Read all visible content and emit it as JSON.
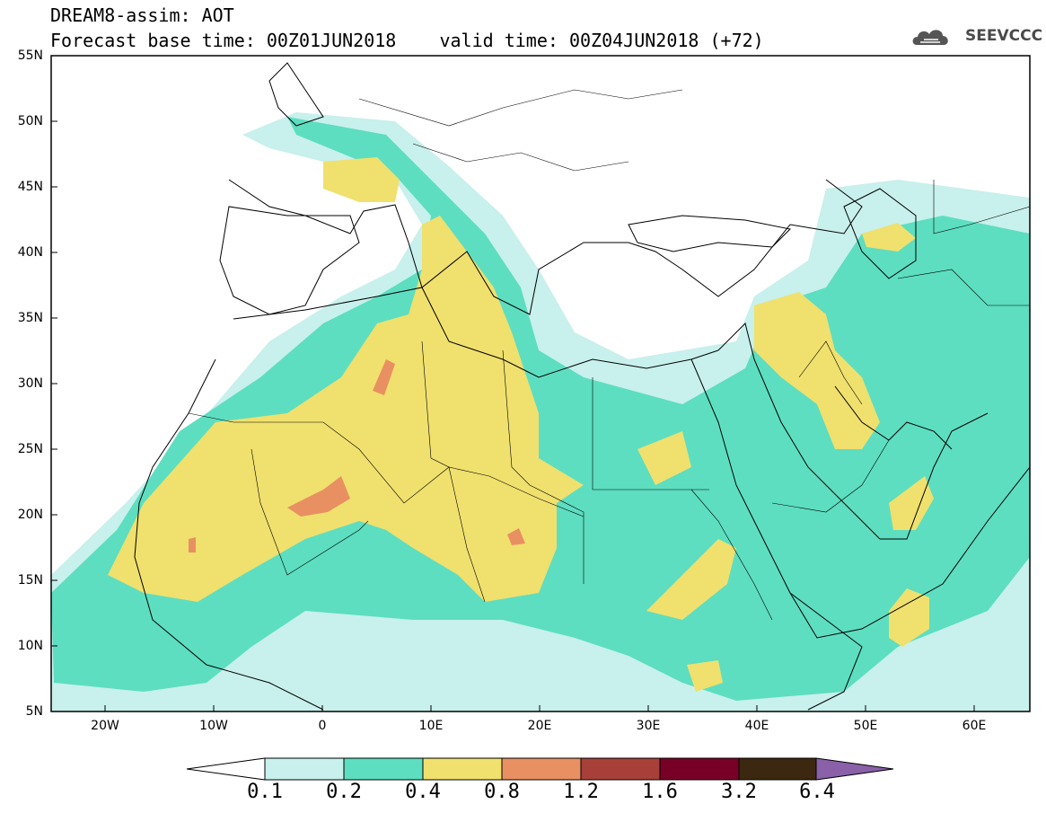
{
  "header": {
    "title_line_1": "DREAM8-assim: AOT",
    "title_line_2": "Forecast base time: 00Z01JUN2018    valid time: 00Z04JUN2018 (+72)",
    "logo_text": "SEEVCCC",
    "logo_icon": "cloud-logo-icon"
  },
  "map": {
    "variable": "AOT",
    "lon_range": [
      -25,
      65
    ],
    "lat_range": [
      5,
      55
    ],
    "projection": "equirectangular",
    "lat_ticks": [
      "55N",
      "50N",
      "45N",
      "40N",
      "35N",
      "30N",
      "25N",
      "20N",
      "15N",
      "10N",
      "5N"
    ],
    "lon_ticks": [
      "20W",
      "10W",
      "0",
      "10E",
      "20E",
      "30E",
      "40E",
      "50E",
      "60E"
    ]
  },
  "colorbar": {
    "labels": [
      "0.1",
      "0.2",
      "0.4",
      "0.8",
      "1.2",
      "1.6",
      "3.2",
      "6.4"
    ],
    "colors": [
      "#c8f0ec",
      "#5ddec0",
      "#f0e06e",
      "#e89062",
      "#a8403a",
      "#780026",
      "#3c2810",
      "#8a60a8"
    ]
  }
}
